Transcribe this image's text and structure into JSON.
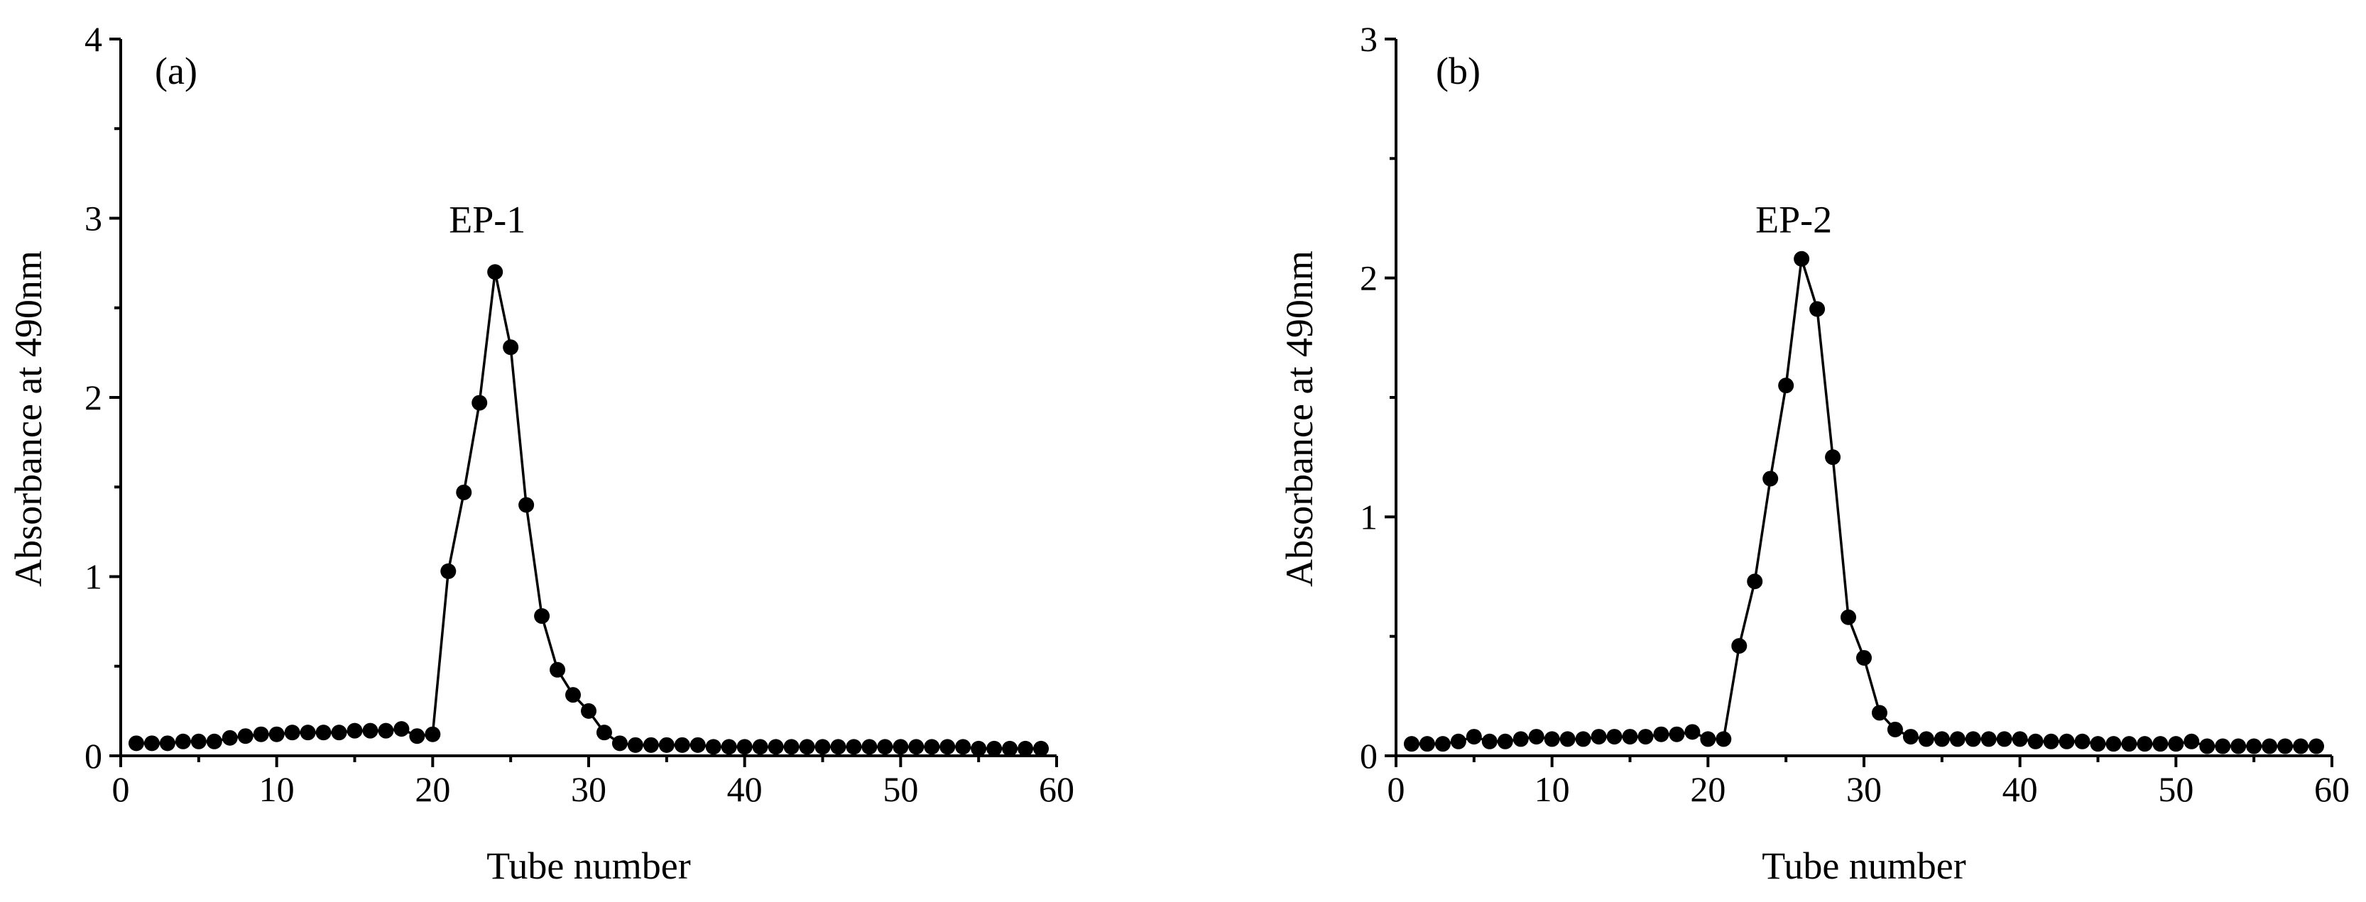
{
  "chart_data": [
    {
      "type": "line",
      "panel_label": "(a)",
      "title": "",
      "xlabel": "Tube number",
      "ylabel": "Absorbance at 490nm",
      "xlim": [
        0,
        60
      ],
      "ylim": [
        0,
        4
      ],
      "xticks": [
        0,
        10,
        20,
        30,
        40,
        50,
        60
      ],
      "yticks": [
        0,
        1,
        2,
        3,
        4
      ],
      "grid": false,
      "annotation": {
        "text": "EP-1",
        "x": 23.5,
        "y": 2.92
      },
      "series": [
        {
          "color": "#000000",
          "marker": "circle",
          "x": [
            1,
            2,
            3,
            4,
            5,
            6,
            7,
            8,
            9,
            10,
            11,
            12,
            13,
            14,
            15,
            16,
            17,
            18,
            19,
            20,
            21,
            22,
            23,
            24,
            25,
            26,
            27,
            28,
            29,
            30,
            31,
            32,
            33,
            34,
            35,
            36,
            37,
            38,
            39,
            40,
            41,
            42,
            43,
            44,
            45,
            46,
            47,
            48,
            49,
            50,
            51,
            52,
            53,
            54,
            55,
            56,
            57,
            58,
            59
          ],
          "y": [
            0.07,
            0.07,
            0.07,
            0.08,
            0.08,
            0.08,
            0.1,
            0.11,
            0.12,
            0.12,
            0.13,
            0.13,
            0.13,
            0.13,
            0.14,
            0.14,
            0.14,
            0.15,
            0.11,
            0.12,
            1.03,
            1.47,
            1.97,
            2.7,
            2.28,
            1.4,
            0.78,
            0.48,
            0.34,
            0.25,
            0.13,
            0.07,
            0.06,
            0.06,
            0.06,
            0.06,
            0.06,
            0.05,
            0.05,
            0.05,
            0.05,
            0.05,
            0.05,
            0.05,
            0.05,
            0.05,
            0.05,
            0.05,
            0.05,
            0.05,
            0.05,
            0.05,
            0.05,
            0.05,
            0.04,
            0.04,
            0.04,
            0.04,
            0.04
          ]
        }
      ]
    },
    {
      "type": "line",
      "panel_label": "(b)",
      "title": "",
      "xlabel": "Tube number",
      "ylabel": "Absorbance at 490nm",
      "xlim": [
        0,
        60
      ],
      "ylim": [
        0,
        3
      ],
      "xticks": [
        0,
        10,
        20,
        30,
        40,
        50,
        60
      ],
      "yticks": [
        0,
        1,
        2,
        3
      ],
      "grid": false,
      "annotation": {
        "text": "EP-2",
        "x": 25.5,
        "y": 2.19
      },
      "series": [
        {
          "color": "#000000",
          "marker": "circle",
          "x": [
            1,
            2,
            3,
            4,
            5,
            6,
            7,
            8,
            9,
            10,
            11,
            12,
            13,
            14,
            15,
            16,
            17,
            18,
            19,
            20,
            21,
            22,
            23,
            24,
            25,
            26,
            27,
            28,
            29,
            30,
            31,
            32,
            33,
            34,
            35,
            36,
            37,
            38,
            39,
            40,
            41,
            42,
            43,
            44,
            45,
            46,
            47,
            48,
            49,
            50,
            51,
            52,
            53,
            54,
            55,
            56,
            57,
            58,
            59
          ],
          "y": [
            0.05,
            0.05,
            0.05,
            0.06,
            0.08,
            0.06,
            0.06,
            0.07,
            0.08,
            0.07,
            0.07,
            0.07,
            0.08,
            0.08,
            0.08,
            0.08,
            0.09,
            0.09,
            0.1,
            0.07,
            0.07,
            0.46,
            0.73,
            1.16,
            1.55,
            2.08,
            1.87,
            1.25,
            0.58,
            0.41,
            0.18,
            0.11,
            0.08,
            0.07,
            0.07,
            0.07,
            0.07,
            0.07,
            0.07,
            0.07,
            0.06,
            0.06,
            0.06,
            0.06,
            0.05,
            0.05,
            0.05,
            0.05,
            0.05,
            0.05,
            0.06,
            0.04,
            0.04,
            0.04,
            0.04,
            0.04,
            0.04,
            0.04,
            0.04
          ]
        }
      ]
    }
  ]
}
